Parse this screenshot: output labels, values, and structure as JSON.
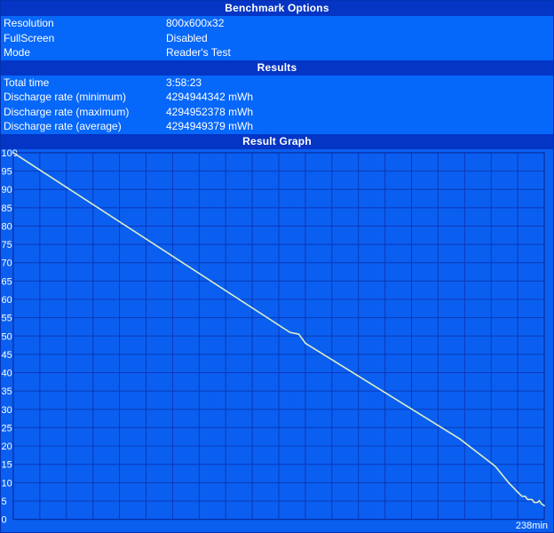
{
  "sections": {
    "benchmark_options": {
      "header": "Benchmark Options",
      "rows": [
        {
          "label": "Resolution",
          "value": "800x600x32"
        },
        {
          "label": "FullScreen",
          "value": "Disabled"
        },
        {
          "label": "Mode",
          "value": "Reader's Test"
        }
      ]
    },
    "results": {
      "header": "Results",
      "rows": [
        {
          "label": "Total time",
          "value": "3:58:23"
        },
        {
          "label": "Discharge rate (minimum)",
          "value": "4294944342 mWh"
        },
        {
          "label": "Discharge rate (maximum)",
          "value": "4294952378 mWh"
        },
        {
          "label": "Discharge rate (average)",
          "value": "4294949379 mWh"
        }
      ]
    },
    "result_graph": {
      "header": "Result Graph"
    }
  },
  "chart_data": {
    "type": "line",
    "title": "Result Graph",
    "x_end_label": "238min",
    "xlim_minutes": [
      0,
      238
    ],
    "ylim": [
      0,
      100
    ],
    "y_tick_step": 5,
    "y_ticks": [
      100,
      95,
      90,
      85,
      80,
      75,
      70,
      65,
      60,
      55,
      50,
      45,
      40,
      35,
      30,
      25,
      20,
      15,
      10,
      5,
      0
    ],
    "x_grid_divisions": 20,
    "grid": "on",
    "legend": "none",
    "series": [
      {
        "name": "battery-charge-percent",
        "points": [
          [
            0,
            100
          ],
          [
            124,
            51
          ],
          [
            128,
            50.5
          ],
          [
            131,
            48
          ],
          [
            200,
            22
          ],
          [
            216,
            14.5
          ],
          [
            222,
            10
          ],
          [
            226,
            7.5
          ],
          [
            228,
            6.3
          ],
          [
            229.5,
            6.3
          ],
          [
            230.5,
            5.4
          ],
          [
            232.5,
            5.4
          ],
          [
            233.5,
            4.6
          ],
          [
            235,
            4.6
          ],
          [
            235.8,
            5.1
          ],
          [
            236.6,
            4.3
          ],
          [
            238,
            3.7
          ]
        ]
      }
    ],
    "colors": {
      "header_background": "#0435C4",
      "row_background": "#0667FB",
      "graph_background": "#0A5FF0",
      "grid_line": "#0C38B8",
      "plot_border": "#0A2CA4",
      "curve": "#DCEFC6",
      "text": "#FFFFFF"
    }
  }
}
